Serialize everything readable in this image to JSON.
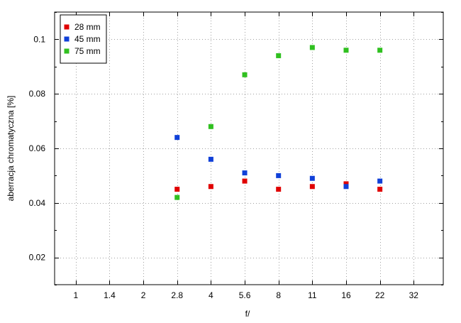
{
  "chart_data": {
    "type": "scatter",
    "title": "",
    "xlabel": "f/",
    "ylabel": "aberracja chromatyczna [%]",
    "x": [
      "1",
      "1.4",
      "2",
      "2.8",
      "4",
      "5.6",
      "8",
      "11",
      "16",
      "22",
      "32"
    ],
    "ylim": [
      0.01,
      0.11
    ],
    "yticks": [
      "0.02",
      "0.04",
      "0.06",
      "0.08",
      "0.1"
    ],
    "grid": true,
    "legend_position": "top-left",
    "series": [
      {
        "name": "28 mm",
        "color": "#e00000",
        "points": [
          {
            "x": "2.8",
            "y": 0.045
          },
          {
            "x": "4",
            "y": 0.046
          },
          {
            "x": "5.6",
            "y": 0.048
          },
          {
            "x": "8",
            "y": 0.045
          },
          {
            "x": "11",
            "y": 0.046
          },
          {
            "x": "16",
            "y": 0.047
          },
          {
            "x": "22",
            "y": 0.045
          }
        ]
      },
      {
        "name": "45 mm",
        "color": "#1040d8",
        "points": [
          {
            "x": "2.8",
            "y": 0.064
          },
          {
            "x": "4",
            "y": 0.056
          },
          {
            "x": "5.6",
            "y": 0.051
          },
          {
            "x": "8",
            "y": 0.05
          },
          {
            "x": "11",
            "y": 0.049
          },
          {
            "x": "16",
            "y": 0.046
          },
          {
            "x": "22",
            "y": 0.048
          }
        ]
      },
      {
        "name": "75 mm",
        "color": "#30c020",
        "points": [
          {
            "x": "2.8",
            "y": 0.042
          },
          {
            "x": "4",
            "y": 0.068
          },
          {
            "x": "5.6",
            "y": 0.087
          },
          {
            "x": "8",
            "y": 0.094
          },
          {
            "x": "11",
            "y": 0.097
          },
          {
            "x": "16",
            "y": 0.096
          },
          {
            "x": "22",
            "y": 0.096
          }
        ]
      }
    ]
  }
}
